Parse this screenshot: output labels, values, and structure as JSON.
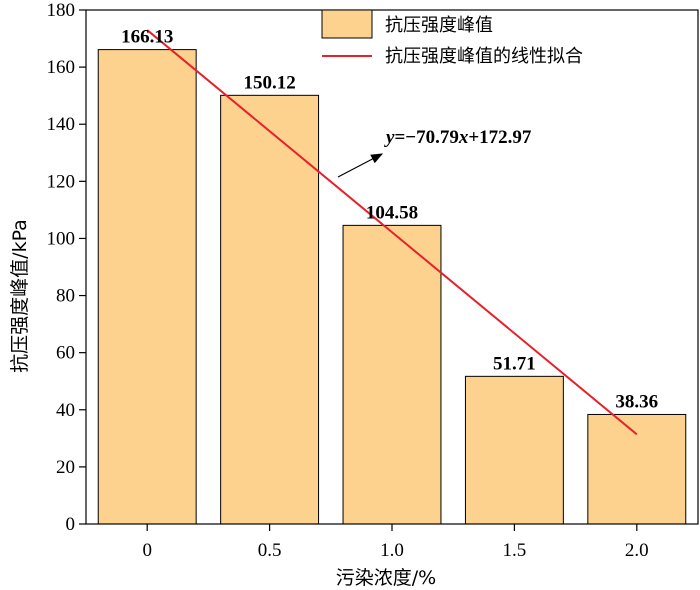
{
  "chart_data": {
    "type": "bar",
    "categories": [
      "0",
      "0.5",
      "1.0",
      "1.5",
      "2.0"
    ],
    "x": [
      0,
      0.5,
      1.0,
      1.5,
      2.0
    ],
    "series": [
      {
        "name": "抗压强度峰值",
        "values": [
          166.13,
          150.12,
          104.58,
          51.71,
          38.36
        ]
      }
    ],
    "data_labels": [
      "166.13",
      "150.12",
      "104.58",
      "51.71",
      "38.36"
    ],
    "fit_line": {
      "name": "抗压强度峰值的线性拟合",
      "slope": -70.79,
      "intercept": 172.97,
      "equation": {
        "y": "y",
        "mid": "=−70.79",
        "x": "x",
        "tail": "+172.97"
      },
      "color": "#e8202a"
    },
    "xlabel": "污染浓度/%",
    "ylabel": "抗压强度峰值/kPa",
    "ylim": [
      0,
      180
    ],
    "yticks": [
      0,
      20,
      40,
      60,
      80,
      100,
      120,
      140,
      160,
      180
    ],
    "bar_color": "#fdd18e",
    "bar_edge_color": "#000000",
    "grid": false,
    "legend_position": "top-right"
  }
}
